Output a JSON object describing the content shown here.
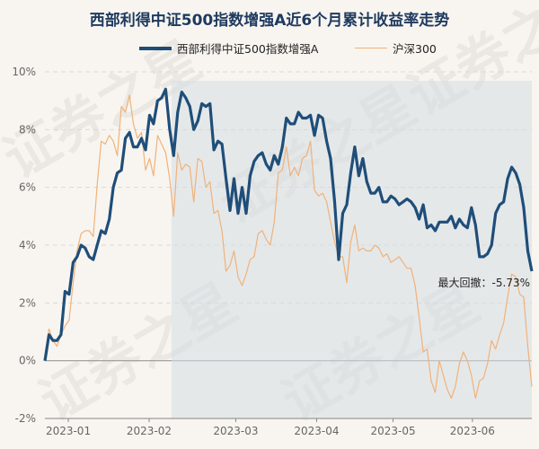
{
  "chart_data": {
    "type": "line",
    "title": "西部利得中证500指数增强A近6个月累计收益率走势",
    "ylim": [
      -2,
      10
    ],
    "y_ticks": [
      "10%",
      "8%",
      "6%",
      "4%",
      "2%",
      "0%",
      "-2%"
    ],
    "y_tick_values": [
      10,
      8,
      6,
      4,
      2,
      0,
      -2
    ],
    "x_ticks": [
      "2023-01",
      "2023-02",
      "2023-03",
      "2023-04",
      "2023-05",
      "2023-06"
    ],
    "x_tick_positions": [
      0.048,
      0.214,
      0.392,
      0.558,
      0.715,
      0.878
    ],
    "grid": true,
    "legend_placement": "top",
    "shaded_region_start": 0.26,
    "series": [
      {
        "name": "西部利得中证500指数增强A",
        "color": "#1f4e79",
        "values": [
          0.0,
          0.9,
          0.7,
          0.7,
          0.9,
          2.4,
          2.3,
          3.4,
          3.6,
          4.0,
          3.9,
          3.6,
          3.5,
          4.0,
          4.5,
          4.4,
          4.9,
          6.0,
          6.5,
          6.6,
          7.7,
          7.9,
          7.4,
          7.4,
          7.7,
          7.3,
          8.5,
          8.2,
          9.0,
          9.1,
          9.4,
          8.0,
          7.1,
          8.6,
          9.3,
          9.1,
          8.8,
          8.0,
          8.3,
          8.9,
          8.8,
          8.9,
          7.3,
          7.6,
          7.5,
          6.3,
          5.2,
          6.3,
          5.1,
          6.0,
          5.1,
          6.4,
          6.9,
          7.1,
          7.2,
          6.8,
          6.6,
          7.1,
          6.8,
          7.4,
          8.4,
          8.2,
          8.2,
          8.6,
          8.4,
          8.4,
          8.5,
          7.8,
          8.5,
          8.4,
          7.6,
          7.0,
          5.5,
          3.5,
          5.1,
          5.4,
          6.5,
          7.4,
          6.4,
          7.0,
          6.2,
          5.8,
          5.8,
          6.0,
          5.5,
          5.5,
          5.7,
          5.6,
          5.4,
          5.5,
          5.6,
          5.5,
          5.3,
          4.9,
          5.4,
          4.6,
          4.7,
          4.5,
          4.8,
          4.8,
          4.8,
          5.0,
          4.6,
          4.9,
          4.7,
          4.6,
          5.3,
          4.7,
          3.6,
          3.6,
          3.7,
          4.0,
          5.1,
          5.4,
          5.5,
          6.3,
          6.7,
          6.5,
          6.1,
          5.3,
          3.8,
          3.1
        ]
      },
      {
        "name": "沪深300",
        "color": "#f0b27a",
        "values": [
          0.0,
          1.1,
          0.7,
          0.5,
          0.9,
          1.2,
          1.4,
          2.7,
          3.8,
          4.4,
          4.5,
          4.5,
          4.3,
          6.1,
          7.6,
          7.5,
          7.8,
          7.6,
          7.1,
          8.8,
          8.6,
          9.2,
          8.2,
          7.7,
          7.9,
          6.6,
          7.0,
          6.4,
          7.8,
          7.5,
          7.2,
          6.3,
          5.0,
          7.2,
          6.6,
          6.8,
          6.7,
          5.5,
          7.0,
          6.9,
          6.0,
          6.2,
          5.1,
          5.2,
          4.5,
          3.1,
          3.3,
          3.8,
          2.9,
          2.6,
          3.0,
          3.5,
          3.6,
          4.4,
          4.5,
          4.2,
          4.0,
          4.8,
          6.5,
          6.6,
          7.4,
          6.4,
          6.7,
          6.4,
          7.0,
          7.1,
          7.6,
          5.9,
          5.7,
          5.8,
          5.5,
          4.8,
          4.1,
          3.6,
          3.6,
          2.7,
          4.1,
          4.7,
          3.8,
          3.9,
          3.8,
          3.8,
          4.0,
          3.9,
          3.6,
          3.7,
          3.4,
          3.5,
          3.6,
          3.4,
          3.2,
          3.2,
          2.6,
          1.5,
          0.3,
          0.4,
          -0.7,
          -1.1,
          0.0,
          -0.5,
          -1.0,
          -1.3,
          -0.9,
          -0.1,
          0.3,
          0.0,
          -0.5,
          -1.3,
          -0.7,
          -0.6,
          -0.1,
          0.7,
          0.4,
          0.9,
          1.3,
          2.2,
          3.0,
          2.9,
          2.3,
          2.2,
          0.5,
          -0.9
        ]
      }
    ],
    "annotation": "最大回撤：-5.73%",
    "watermark": "证券之星"
  }
}
